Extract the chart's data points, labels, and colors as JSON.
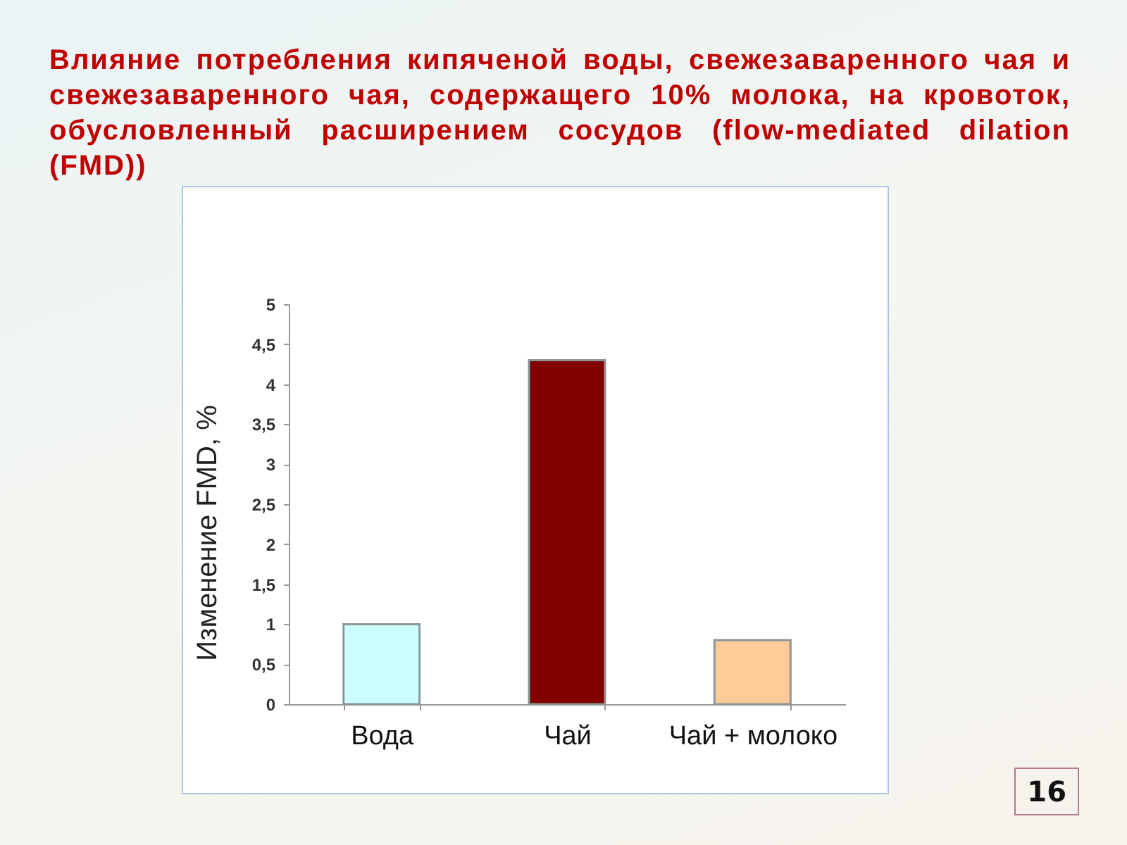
{
  "chart_data": {
    "type": "bar",
    "title": "Влияние потребления кипяченой воды, свежезаваренного чая и свежезаваренного чая, содержащего 10% молока, на кровоток, обусловленный расширением сосудов (flow-mediated dilation (FMD))",
    "ylabel": "Изменение FMD, %",
    "categories": [
      "Вода",
      "Чай",
      "Чай + молоко"
    ],
    "values": [
      1.0,
      4.3,
      0.8
    ],
    "colors": [
      "#ccffff",
      "#800000",
      "#ffcc99"
    ],
    "ylim": [
      0,
      5
    ],
    "yticks": [
      0,
      {
        "value": 0.5,
        "label": "0,5"
      },
      1,
      {
        "value": 1.5,
        "label": "1,5"
      },
      2,
      {
        "value": 2.5,
        "label": "2,5"
      },
      3,
      {
        "value": 3.5,
        "label": "3,5"
      },
      4,
      {
        "value": 4.5,
        "label": "4,5"
      },
      5
    ],
    "grid": false,
    "annotations": [
      "16"
    ]
  }
}
